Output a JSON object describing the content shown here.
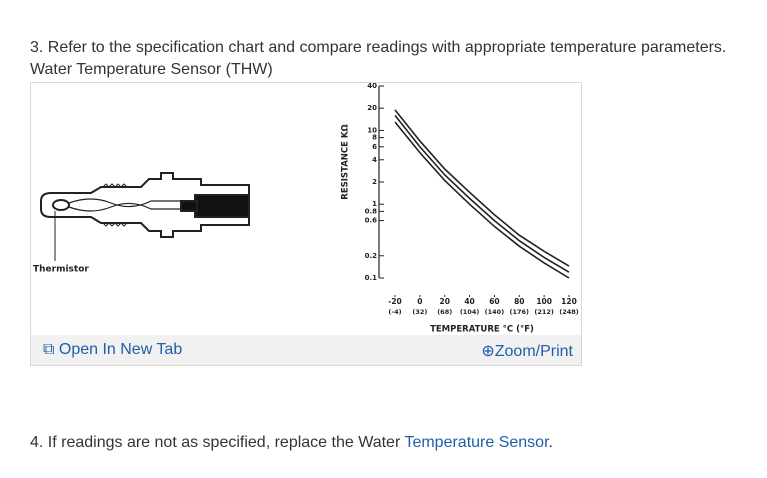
{
  "step3": "3. Refer to the specification chart and compare readings with appropriate temperature parameters.",
  "figure_caption": "Water Temperature Sensor (THW)",
  "figure": {
    "part_label": "Thermistor",
    "open_tab": "Open In New Tab",
    "zoom": "Zoom/Print",
    "chart": {
      "type": "line",
      "y_label": "RESISTANCE KΩ",
      "x_label": "TEMPERATURE °C (°F)",
      "log_scale_y": true,
      "color": "#222222",
      "x": [
        -20,
        0,
        20,
        40,
        60,
        80,
        100,
        120
      ],
      "series": [
        {
          "values": [
            19,
            7.2,
            3.0,
            1.45,
            0.72,
            0.38,
            0.23,
            0.145
          ]
        },
        {
          "values": [
            16,
            6,
            2.5,
            1.2,
            0.6,
            0.32,
            0.19,
            0.12
          ]
        },
        {
          "values": [
            13,
            5,
            2.1,
            1.0,
            0.5,
            0.27,
            0.16,
            0.1
          ]
        }
      ],
      "xlim": [
        -20,
        120
      ],
      "xticks": [
        -20,
        0,
        20,
        40,
        60,
        80,
        100,
        120
      ],
      "xticks_fahrenheit": [
        "(-4)",
        "(32)",
        "(68)",
        "(104)",
        "(140)",
        "(176)",
        "(212)",
        "(248)"
      ],
      "ylim": [
        0.1,
        40
      ],
      "yticks": [
        40,
        20,
        10,
        8,
        6,
        4,
        2,
        1,
        0.8,
        0.6,
        0.2,
        0.1
      ]
    }
  },
  "step4": {
    "text": "4. If readings are not as specified, replace the Water ",
    "link": "Temperature Sensor",
    "end": "."
  }
}
